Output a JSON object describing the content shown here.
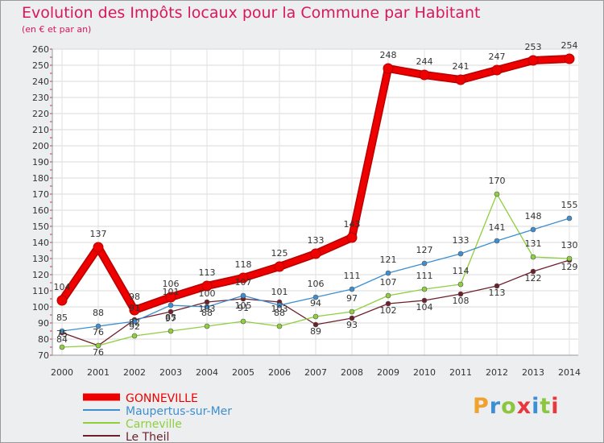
{
  "header": {
    "title": "Evolution des Impôts locaux pour la Commune par Habitant",
    "subtitle": "(en € et par an)"
  },
  "logo": {
    "text": "Proxiti",
    "letter_colors": [
      "#f0a22e",
      "#3b8fd4",
      "#8cc63f",
      "#e8383d",
      "#3b8fd4",
      "#8cc63f",
      "#e8383d"
    ]
  },
  "chart_data": {
    "type": "line",
    "title": "Evolution des Impôts locaux pour la Commune par Habitant",
    "subtitle": "(en € et par an)",
    "xlabel": "",
    "ylabel": "",
    "ylim": [
      70,
      260
    ],
    "ytick_step": 10,
    "grid": true,
    "legend_position": "bottom-left",
    "x": [
      "2000",
      "2001",
      "2002",
      "2003",
      "2004",
      "2005",
      "2006",
      "2007",
      "2008",
      "2009",
      "2010",
      "2011",
      "2012",
      "2013",
      "2014"
    ],
    "series": [
      {
        "name": "GONNEVILLE",
        "color": "#ee0000",
        "values": [
          104,
          137,
          98,
          106,
          113,
          118,
          125,
          133,
          143,
          248,
          244,
          241,
          247,
          253,
          254
        ],
        "labels": [
          "104",
          "137",
          "98",
          "106",
          "113",
          "118",
          "125",
          "133",
          "143",
          "248",
          "244",
          "241",
          "247",
          "253",
          "254"
        ]
      },
      {
        "name": "Maupertus-sur-Mer",
        "color": "#3d8fd1",
        "values": [
          85,
          88,
          91,
          101,
          100,
          107,
          101,
          106,
          111,
          121,
          127,
          133,
          141,
          148,
          155
        ],
        "labels": [
          "85",
          "88",
          "91",
          "101",
          "100",
          "107",
          "101",
          "106",
          "111",
          "121",
          "127",
          "133",
          "141",
          "148",
          "155"
        ]
      },
      {
        "name": "Carneville",
        "color": "#8fcf3c",
        "values": [
          75,
          76,
          82,
          85,
          88,
          91,
          88,
          94,
          97,
          107,
          111,
          114,
          170,
          131,
          130
        ],
        "labels": [
          "75",
          "76",
          "82",
          "85",
          "88",
          "91",
          "88",
          "94",
          "97",
          "107",
          "111",
          "114",
          "170",
          "131",
          "130"
        ]
      },
      {
        "name": "Le Theil",
        "color": "#6e1f2c",
        "values": [
          84,
          76,
          92,
          97,
          103,
          105,
          103,
          89,
          93,
          102,
          104,
          108,
          113,
          122,
          129
        ],
        "labels": [
          "84",
          "76",
          "92",
          "97",
          "103",
          "105",
          "103",
          "89",
          "93",
          "102",
          "104",
          "108",
          "113",
          "122",
          "129"
        ]
      }
    ]
  }
}
